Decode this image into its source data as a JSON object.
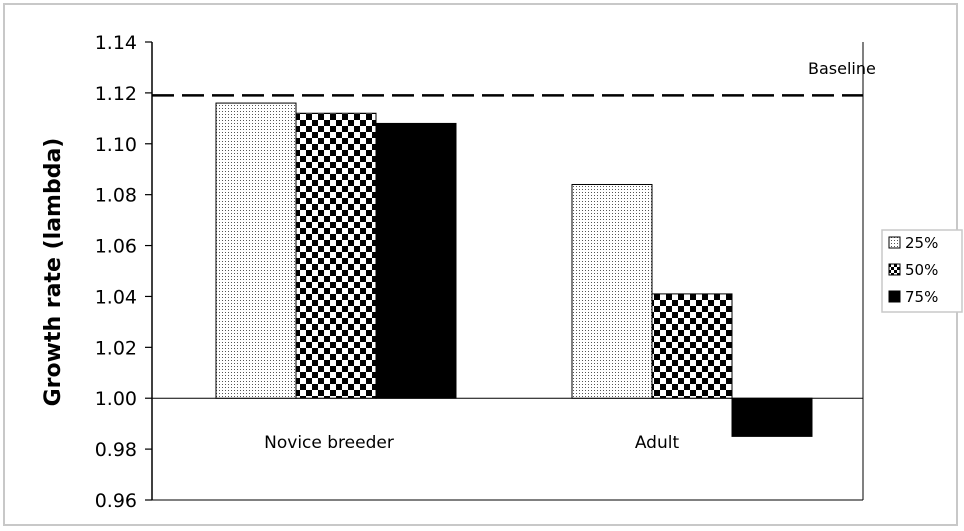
{
  "chart_data": {
    "type": "bar",
    "ylabel": "Growth rate (lambda)",
    "xlabel": "",
    "ylim": [
      0.96,
      1.14
    ],
    "yticks": [
      "0.96",
      "0.98",
      "1.00",
      "1.02",
      "1.04",
      "1.06",
      "1.08",
      "1.10",
      "1.12",
      "1.14"
    ],
    "categories": [
      "Novice breeder",
      "Adult"
    ],
    "series": [
      {
        "name": "25%",
        "values": [
          1.116,
          1.084
        ],
        "pattern": "dots"
      },
      {
        "name": "50%",
        "values": [
          1.112,
          1.041
        ],
        "pattern": "checker"
      },
      {
        "name": "75%",
        "values": [
          1.108,
          0.985
        ],
        "pattern": "solid"
      }
    ],
    "bar_base": 1.0,
    "baseline": {
      "label": "Baseline",
      "value": 1.119
    },
    "legend_position": "right",
    "grid": false
  }
}
